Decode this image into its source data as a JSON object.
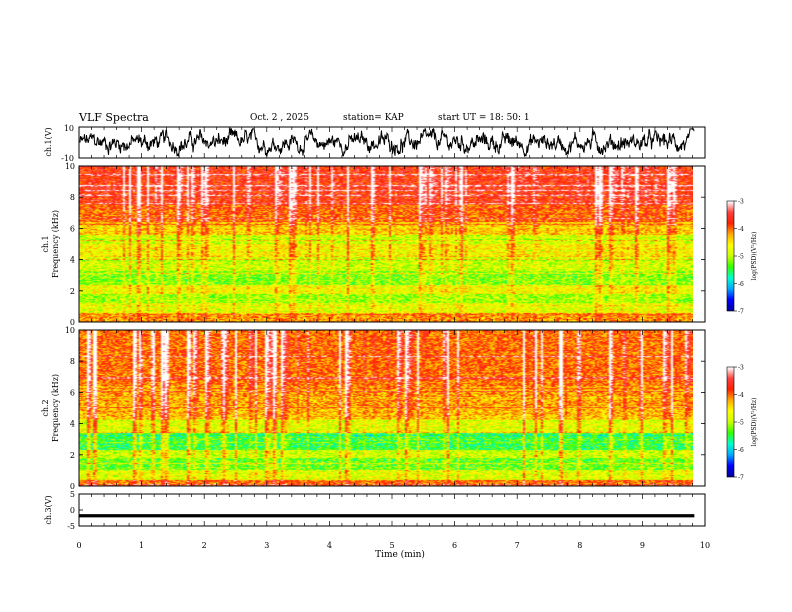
{
  "header": {
    "title": "VLF Spectra",
    "date": "Oct. 2 , 2025",
    "station": "station= KAP",
    "start_ut": "start  UT  =   18: 50: 1"
  },
  "chart_data": [
    {
      "type": "line",
      "panel": "ch1-waveform",
      "ylabel": "ch.1(V)",
      "ylim": [
        -10,
        10
      ],
      "yticks": [
        "10",
        "-10"
      ],
      "xlim": [
        0,
        10
      ],
      "data_extent_min": 9.83,
      "description_values": "noisy waveform roughly between -8 and 9 V"
    },
    {
      "type": "heatmap",
      "panel": "ch1-spectrogram",
      "ylabel": "ch.1\nFrequency (kHz)",
      "ylabel_line1": "ch.1",
      "ylabel_line2": "Frequency  (kHz)",
      "ylim": [
        0,
        10
      ],
      "yticks": [
        "0",
        "2",
        "4",
        "6",
        "8",
        "10"
      ],
      "xlim": [
        0,
        10
      ],
      "colorbar": {
        "label": "log(PSD)(V²/Hz)",
        "range": [
          -7,
          -3
        ],
        "ticks": [
          "-3",
          "-4",
          "-5",
          "-6",
          "-7"
        ]
      },
      "bands_khz": [
        {
          "from": 0,
          "to": 0.6,
          "log_psd": -4.2
        },
        {
          "from": 0.6,
          "to": 1.2,
          "log_psd": -4.8
        },
        {
          "from": 1.2,
          "to": 1.8,
          "log_psd": -5.1
        },
        {
          "from": 1.8,
          "to": 2.4,
          "log_psd": -4.7
        },
        {
          "from": 2.4,
          "to": 3.3,
          "log_psd": -5.2
        },
        {
          "from": 3.3,
          "to": 4.2,
          "log_psd": -4.9
        },
        {
          "from": 4.2,
          "to": 5.0,
          "log_psd": -4.6
        },
        {
          "from": 5.0,
          "to": 5.6,
          "log_psd": -4.9
        },
        {
          "from": 5.6,
          "to": 6.4,
          "log_psd": -4.4
        },
        {
          "from": 6.4,
          "to": 7.5,
          "log_psd": -4.0
        },
        {
          "from": 7.5,
          "to": 10,
          "log_psd": -3.7
        }
      ]
    },
    {
      "type": "heatmap",
      "panel": "ch2-spectrogram",
      "ylabel_line1": "ch.2",
      "ylabel_line2": "Frequency  (kHz)",
      "ylim": [
        0,
        10
      ],
      "yticks": [
        "0",
        "2",
        "4",
        "6",
        "8",
        "10"
      ],
      "xlim": [
        0,
        10
      ],
      "colorbar": {
        "label": "log(PSD)(V²/Hz)",
        "range": [
          -7,
          -3
        ],
        "ticks": [
          "-3",
          "-4",
          "-5",
          "-6",
          "-7"
        ]
      },
      "bands_khz": [
        {
          "from": 0,
          "to": 0.4,
          "log_psd": -4.0
        },
        {
          "from": 0.4,
          "to": 1.0,
          "log_psd": -4.8
        },
        {
          "from": 1.0,
          "to": 1.8,
          "log_psd": -5.3
        },
        {
          "from": 1.8,
          "to": 2.3,
          "log_psd": -4.9
        },
        {
          "from": 2.3,
          "to": 3.4,
          "log_psd": -5.5
        },
        {
          "from": 3.4,
          "to": 4.2,
          "log_psd": -4.8
        },
        {
          "from": 4.2,
          "to": 5.2,
          "log_psd": -4.3
        },
        {
          "from": 5.2,
          "to": 6.5,
          "log_psd": -4.2
        },
        {
          "from": 6.5,
          "to": 10,
          "log_psd": -4.0
        }
      ]
    },
    {
      "type": "line",
      "panel": "ch3-waveform",
      "ylabel": "ch.3(V)",
      "ylim": [
        -5,
        5
      ],
      "yticks": [
        "5",
        "0",
        "-5"
      ],
      "xlim": [
        0,
        10
      ],
      "flat_level": -1.8,
      "trace_thickness_v": 1.0
    }
  ],
  "x_axis": {
    "label": "Time  (min)",
    "ticks": [
      "0",
      "1",
      "2",
      "3",
      "4",
      "5",
      "6",
      "7",
      "8",
      "9",
      "10"
    ],
    "data_end_min": 9.83
  },
  "colors": {
    "axis": "#000000",
    "background": "#ffffff",
    "colormap": [
      "#0000a0",
      "#0000ff",
      "#00aaff",
      "#00ffcc",
      "#33ff00",
      "#ccff00",
      "#ffff00",
      "#ffaa00",
      "#ff2000",
      "#ff4040",
      "#ffffff"
    ]
  }
}
